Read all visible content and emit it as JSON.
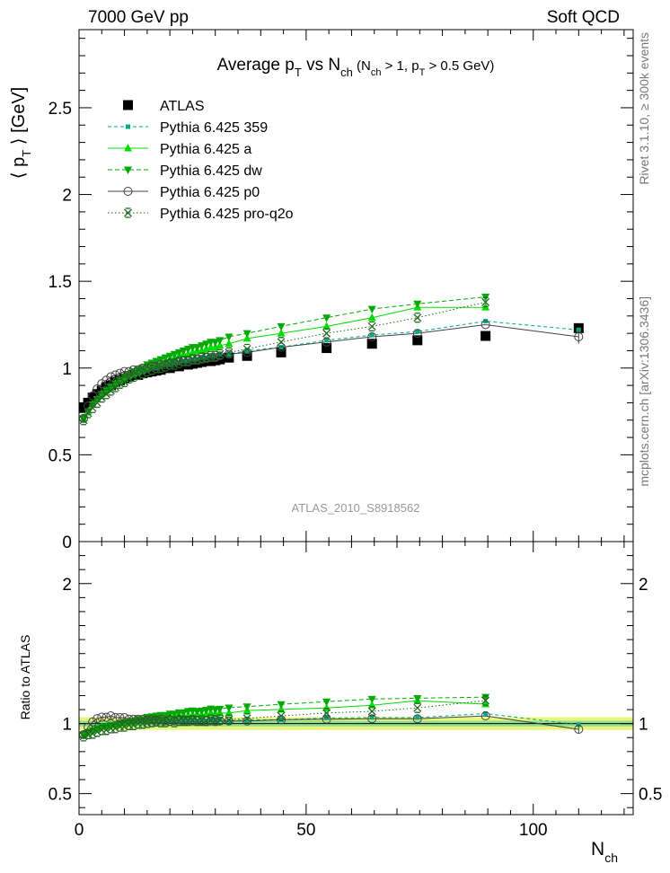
{
  "header": {
    "left": "7000 GeV pp",
    "right": "Soft QCD"
  },
  "side_labels": {
    "rivet": "Rivet 3.1.10, ≥ 300k events",
    "mcplots": "mcplots.cern.ch [arXiv:1306.3436]"
  },
  "colors": {
    "atlas": "#000000",
    "p359": "#00aa88",
    "pa": "#00dd00",
    "pdw": "#00aa00",
    "pp0": "#444444",
    "pq2o": "#226622",
    "band_outer": "#e8f57a",
    "band_inner": "#8fde8f"
  },
  "chart_data": [
    {
      "type": "scatter",
      "title": "Average pT vs Nch (Nch > 1, pT > 0.5 GeV)",
      "title_parts": {
        "main": "Average p",
        "sub1": "T",
        "mid": " vs N",
        "sub2": "ch",
        "paren1": " (N",
        "sub3": "ch",
        "paren2": " > 1, p",
        "sub4": "T",
        "paren3": " > 0.5 GeV)"
      },
      "ylabel": "⟨ pT ⟩ [GeV]",
      "ylabel_parts": {
        "a": "⟨ p",
        "sub": "T",
        "b": " ⟩ [GeV]"
      },
      "xlim": [
        0,
        122
      ],
      "ylim": [
        0,
        2.95
      ],
      "yticks": [
        0,
        0.5,
        1,
        1.5,
        2,
        2.5
      ],
      "ytick_labels": [
        "0",
        "0.5",
        "1",
        "1.5",
        "2",
        "2.5"
      ],
      "watermark": "ATLAS_2010_S8918562",
      "legend": [
        "ATLAS",
        "Pythia 6.425 359",
        "Pythia 6.425 a",
        "Pythia 6.425 dw",
        "Pythia 6.425 p0",
        "Pythia 6.425 pro-q2o"
      ],
      "legend_position": "top-left",
      "x": [
        1,
        2,
        3,
        4,
        5,
        6,
        7,
        8,
        9,
        10,
        11,
        12,
        13,
        14,
        15,
        16,
        17,
        18,
        19,
        20,
        21,
        22,
        23,
        24,
        25,
        26,
        27,
        28,
        29,
        30,
        31,
        33,
        37,
        44.5,
        54.5,
        64.5,
        74.5,
        89.5,
        110
      ],
      "series": [
        {
          "name": "ATLAS",
          "key": "atlas",
          "values": [
            0.77,
            0.8,
            0.83,
            0.85,
            0.87,
            0.89,
            0.9,
            0.92,
            0.93,
            0.94,
            0.95,
            0.96,
            0.96,
            0.97,
            0.975,
            0.98,
            0.985,
            0.99,
            1.0,
            1.0,
            1.01,
            1.01,
            1.02,
            1.02,
            1.025,
            1.03,
            1.035,
            1.04,
            1.04,
            1.045,
            1.05,
            1.06,
            1.07,
            1.09,
            1.115,
            1.14,
            1.16,
            1.185,
            1.23
          ],
          "err": [
            0,
            0,
            0,
            0,
            0,
            0,
            0,
            0,
            0,
            0,
            0,
            0,
            0,
            0,
            0,
            0,
            0,
            0,
            0,
            0,
            0,
            0,
            0,
            0,
            0,
            0,
            0,
            0,
            0,
            0,
            0,
            0,
            0,
            0,
            0,
            0,
            0,
            0,
            0.02
          ]
        },
        {
          "name": "Pythia 6.425 359",
          "key": "p359",
          "values": [
            0.71,
            0.75,
            0.79,
            0.82,
            0.85,
            0.87,
            0.89,
            0.91,
            0.92,
            0.94,
            0.95,
            0.96,
            0.97,
            0.98,
            0.99,
            1.0,
            1.0,
            1.01,
            1.02,
            1.02,
            1.03,
            1.03,
            1.04,
            1.04,
            1.05,
            1.05,
            1.06,
            1.06,
            1.07,
            1.07,
            1.08,
            1.08,
            1.1,
            1.12,
            1.16,
            1.19,
            1.21,
            1.27,
            1.22
          ]
        },
        {
          "name": "Pythia 6.425 a",
          "key": "pa",
          "values": [
            0.71,
            0.75,
            0.79,
            0.82,
            0.85,
            0.87,
            0.89,
            0.91,
            0.93,
            0.94,
            0.96,
            0.97,
            0.98,
            0.99,
            1.0,
            1.01,
            1.02,
            1.03,
            1.04,
            1.05,
            1.06,
            1.07,
            1.08,
            1.08,
            1.09,
            1.1,
            1.1,
            1.11,
            1.12,
            1.12,
            1.13,
            1.14,
            1.17,
            1.2,
            1.24,
            1.29,
            1.35,
            1.35,
            null
          ]
        },
        {
          "name": "Pythia 6.425 dw",
          "key": "pdw",
          "values": [
            0.71,
            0.75,
            0.79,
            0.82,
            0.85,
            0.87,
            0.89,
            0.91,
            0.93,
            0.95,
            0.96,
            0.98,
            0.99,
            1.0,
            1.02,
            1.03,
            1.04,
            1.05,
            1.06,
            1.07,
            1.08,
            1.09,
            1.1,
            1.11,
            1.12,
            1.12,
            1.13,
            1.14,
            1.15,
            1.15,
            1.16,
            1.18,
            1.2,
            1.24,
            1.29,
            1.34,
            1.37,
            1.41,
            null
          ]
        },
        {
          "name": "Pythia 6.425 p0",
          "key": "pp0",
          "values": [
            0.71,
            0.78,
            0.84,
            0.88,
            0.91,
            0.93,
            0.95,
            0.96,
            0.97,
            0.98,
            0.98,
            0.99,
            0.99,
            1.0,
            1.0,
            1.01,
            1.01,
            1.02,
            1.02,
            1.03,
            1.03,
            1.04,
            1.04,
            1.04,
            1.05,
            1.05,
            1.05,
            1.06,
            1.06,
            1.06,
            1.07,
            1.08,
            1.09,
            1.12,
            1.15,
            1.18,
            1.2,
            1.25,
            1.18
          ],
          "err": [
            0,
            0,
            0,
            0,
            0,
            0,
            0,
            0,
            0,
            0,
            0,
            0,
            0,
            0,
            0,
            0,
            0,
            0,
            0,
            0,
            0,
            0,
            0,
            0,
            0,
            0,
            0,
            0,
            0,
            0,
            0,
            0,
            0,
            0,
            0,
            0,
            0,
            0,
            0.04
          ]
        },
        {
          "name": "Pythia 6.425 pro-q2o",
          "key": "pq2o",
          "values": [
            0.7,
            0.74,
            0.77,
            0.8,
            0.83,
            0.85,
            0.87,
            0.89,
            0.91,
            0.92,
            0.94,
            0.95,
            0.96,
            0.97,
            0.98,
            0.99,
            1.0,
            1.0,
            1.01,
            1.02,
            1.02,
            1.03,
            1.04,
            1.04,
            1.05,
            1.05,
            1.06,
            1.06,
            1.07,
            1.07,
            1.08,
            1.09,
            1.11,
            1.15,
            1.2,
            1.24,
            1.29,
            1.38,
            null
          ]
        }
      ]
    },
    {
      "type": "scatter",
      "title": "",
      "ylabel": "Ratio to ATLAS",
      "xlabel": "Nch",
      "xlabel_parts": {
        "a": "N",
        "sub": "ch"
      },
      "xlim": [
        0,
        122
      ],
      "ylim": [
        0.35,
        2.3
      ],
      "yticks": [
        0.5,
        1,
        2
      ],
      "ytick_labels": [
        "0.5",
        "1",
        "2"
      ],
      "xticks": [
        0,
        50,
        100
      ],
      "xtick_labels": [
        "0",
        "50",
        "100"
      ],
      "reference_band": {
        "outer": [
          0.955,
          1.045
        ],
        "inner": [
          0.98,
          1.02
        ]
      }
    }
  ]
}
